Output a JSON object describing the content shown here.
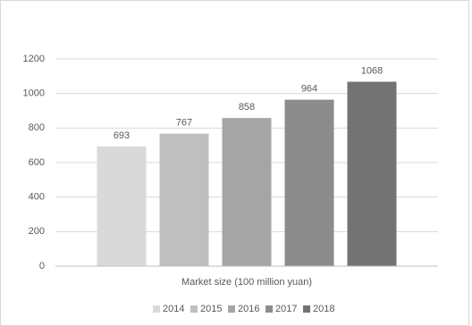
{
  "chart_data": {
    "type": "bar",
    "categories": [
      "Market size (100 million yuan)"
    ],
    "series": [
      {
        "name": "2014",
        "color": "#d9d9d9",
        "values": [
          693
        ]
      },
      {
        "name": "2015",
        "color": "#bfbfbf",
        "values": [
          767
        ]
      },
      {
        "name": "2016",
        "color": "#a5a5a5",
        "values": [
          858
        ]
      },
      {
        "name": "2017",
        "color": "#8c8c8c",
        "values": [
          964
        ]
      },
      {
        "name": "2018",
        "color": "#737373",
        "values": [
          1068
        ]
      }
    ],
    "ylim": [
      0,
      1200
    ],
    "yticks": [
      0,
      200,
      400,
      600,
      800,
      1000,
      1200
    ],
    "grid": true,
    "legend": "bottom"
  }
}
